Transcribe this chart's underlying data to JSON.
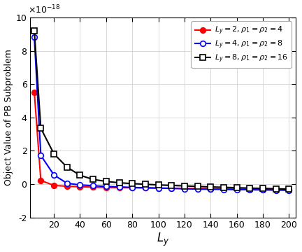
{
  "xlabel": "$L_y$",
  "ylabel": "Object Value of PB Subproblem",
  "xlim": [
    2,
    205
  ],
  "ylim": [
    -2e-18,
    1e-17
  ],
  "xticks": [
    20,
    40,
    60,
    80,
    100,
    120,
    140,
    160,
    180,
    200
  ],
  "yticks": [
    -2e-18,
    0,
    2e-18,
    4e-18,
    6e-18,
    8e-18,
    1e-17
  ],
  "ytick_labels": [
    "-2",
    "0",
    "2",
    "4",
    "6",
    "8",
    "10"
  ],
  "x_values": [
    5,
    10,
    20,
    30,
    40,
    50,
    60,
    70,
    80,
    90,
    100,
    110,
    120,
    130,
    140,
    150,
    160,
    170,
    180,
    190,
    200
  ],
  "series": [
    {
      "label": "$L_y = 2, \\rho_1 = \\rho_2 = 4$",
      "color": "#ff0000",
      "marker": "o",
      "marker_filled": true,
      "values": [
        5.5e-18,
        2.2e-19,
        -8e-20,
        -1.3e-19,
        -1.6e-19,
        -1.8e-19,
        -2e-19,
        -2.1e-19,
        -2.2e-19,
        -2.3e-19,
        -2.4e-19,
        -2.5e-19,
        -2.6e-19,
        -2.7e-19,
        -2.8e-19,
        -2.9e-19,
        -3e-19,
        -3.1e-19,
        -3.2e-19,
        -3.3e-19,
        -3.4e-19
      ]
    },
    {
      "label": "$L_y = 4, \\rho_1 = \\rho_2 = 8$",
      "color": "#0000ff",
      "marker": "o",
      "marker_filled": false,
      "values": [
        8.8e-18,
        1.72e-18,
        5.5e-19,
        5e-20,
        -5e-20,
        -1e-19,
        -1.4e-19,
        -1.7e-19,
        -2e-19,
        -2.2e-19,
        -2.4e-19,
        -2.6e-19,
        -2.8e-19,
        -3e-19,
        -3.1e-19,
        -3.2e-19,
        -3.3e-19,
        -3.4e-19,
        -3.5e-19,
        -3.6e-19,
        -3.7e-19
      ]
    },
    {
      "label": "$L_y = 8, \\rho_1 = \\rho_2 = 16$",
      "color": "#000000",
      "marker": "s",
      "marker_filled": false,
      "values": [
        9.2e-18,
        3.35e-18,
        1.82e-18,
        1.02e-18,
        5.3e-19,
        2.8e-19,
        1.6e-19,
        8e-20,
        3e-20,
        -1e-20,
        -5e-20,
        -8e-20,
        -1.1e-19,
        -1.4e-19,
        -1.7e-19,
        -1.9e-19,
        -2.2e-19,
        -2.4e-19,
        -2.6e-19,
        -2.8e-19,
        -3e-19
      ]
    }
  ],
  "legend_loc": "upper right",
  "grid_color": "#d3d3d3",
  "bg_color": "#ffffff",
  "exponent_label": "$\\times10^{-18}$"
}
